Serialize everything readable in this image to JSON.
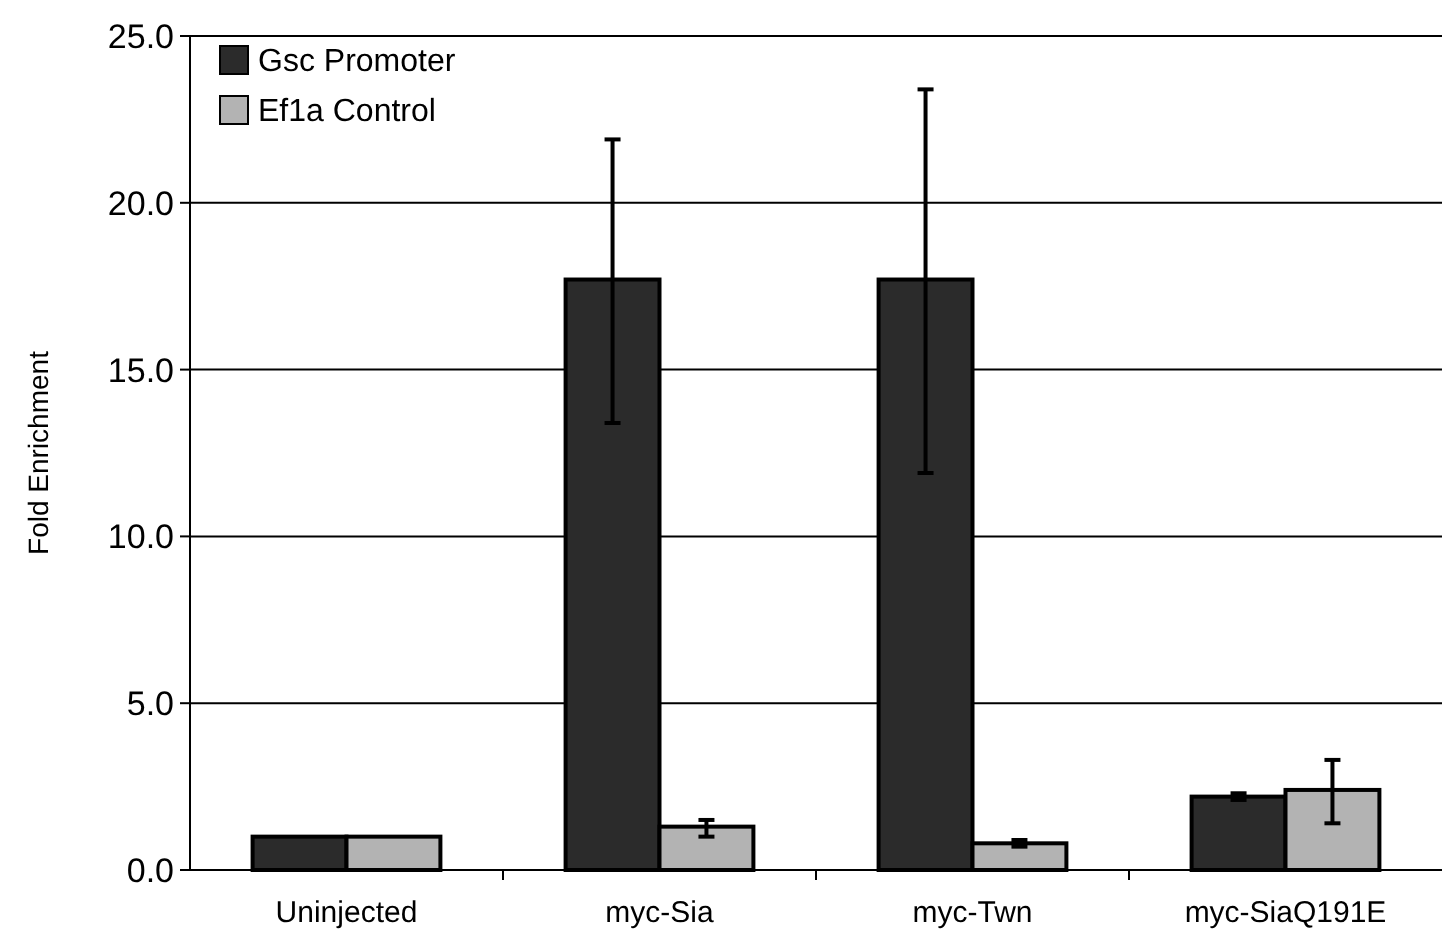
{
  "chart_data": {
    "type": "bar",
    "ylabel": "Fold Enrichment",
    "categories": [
      "Uninjected",
      "myc-Sia",
      "myc-Twn",
      "myc-SiaQ191E"
    ],
    "series": [
      {
        "name": "Gsc Promoter",
        "color": "#2b2b2b",
        "values": [
          1.0,
          17.7,
          17.7,
          2.2
        ],
        "errors": [
          null,
          [
            13.4,
            21.9
          ],
          [
            11.9,
            23.4
          ],
          [
            2.1,
            2.3
          ]
        ]
      },
      {
        "name": "Ef1a Control",
        "color": "#b3b3b3",
        "values": [
          1.0,
          1.3,
          0.8,
          2.4
        ],
        "errors": [
          null,
          [
            1.0,
            1.5
          ],
          [
            0.7,
            0.9
          ],
          [
            1.4,
            3.3
          ]
        ]
      }
    ],
    "ylim": [
      0,
      25
    ],
    "yticks": [
      {
        "value": 0,
        "label": "0.0"
      },
      {
        "value": 5,
        "label": "5.0"
      },
      {
        "value": 10,
        "label": "10.0"
      },
      {
        "value": 15,
        "label": "15.0"
      },
      {
        "value": 20,
        "label": "20.0"
      },
      {
        "value": 25,
        "label": "25.0"
      }
    ],
    "grid": "y",
    "legend": "top left"
  }
}
